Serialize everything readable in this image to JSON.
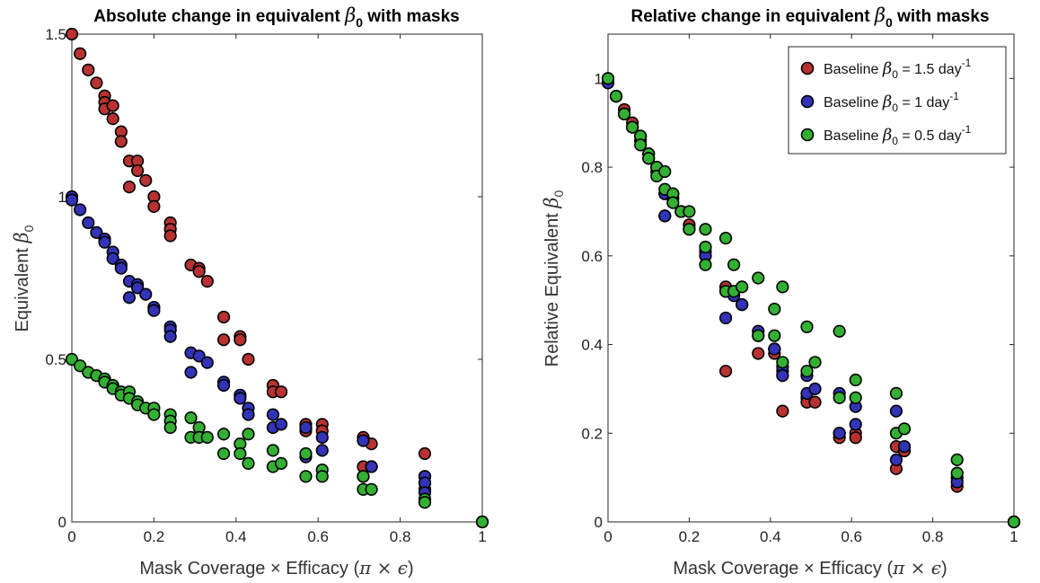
{
  "colors": {
    "red": "#b83232",
    "blue": "#3333b8",
    "green": "#33b033",
    "edge": "#000000"
  },
  "legend": {
    "placement": "top-right",
    "entries": [
      {
        "prefix": "Baseline ",
        "beta": "β",
        "sub": "0",
        "mid": " = 1.5 day",
        "sup": "-1",
        "color": "red"
      },
      {
        "prefix": "Baseline ",
        "beta": "β",
        "sub": "0",
        "mid": " = 1 day",
        "sup": "-1",
        "color": "blue"
      },
      {
        "prefix": "Baseline ",
        "beta": "β",
        "sub": "0",
        "mid": " = 0.5 day",
        "sup": "-1",
        "color": "green"
      }
    ]
  },
  "chart_data": [
    {
      "type": "scatter",
      "title": {
        "text": "Absolute change in equivalent ",
        "beta": "β",
        "sub": "0",
        "tail": " with masks"
      },
      "xlabel": {
        "text": "Mask Coverage × Efficacy (",
        "greek": "π × ϵ",
        "tail": ")"
      },
      "ylabel": {
        "text": "Equivalent ",
        "beta": "β",
        "sub": "0"
      },
      "xlim": [
        0,
        1
      ],
      "ylim": [
        0,
        1.5
      ],
      "xticks": [
        0,
        0.2,
        0.4,
        0.6,
        0.8,
        1
      ],
      "xticklabels": [
        "0",
        "0.2",
        "0.4",
        "0.6",
        "0.8",
        "1"
      ],
      "yticks": [
        0,
        0.5,
        1,
        1.5
      ],
      "yticklabels": [
        "0",
        "0.5",
        "1",
        "1.5"
      ],
      "grid": false,
      "series": [
        {
          "color": "red",
          "points": [
            [
              0,
              1.5
            ],
            [
              0.02,
              1.44
            ],
            [
              0.04,
              1.39
            ],
            [
              0.06,
              1.35
            ],
            [
              0.08,
              1.31
            ],
            [
              0.08,
              1.29
            ],
            [
              0.08,
              1.27
            ],
            [
              0.1,
              1.24
            ],
            [
              0.1,
              1.28
            ],
            [
              0.12,
              1.2
            ],
            [
              0.12,
              1.17
            ],
            [
              0.14,
              1.11
            ],
            [
              0.14,
              1.03
            ],
            [
              0.16,
              1.11
            ],
            [
              0.16,
              1.08
            ],
            [
              0.18,
              1.05
            ],
            [
              0.2,
              1.0
            ],
            [
              0.2,
              0.97
            ],
            [
              0.24,
              0.92
            ],
            [
              0.24,
              0.9
            ],
            [
              0.24,
              0.88
            ],
            [
              0.29,
              0.79
            ],
            [
              0.31,
              0.78
            ],
            [
              0.31,
              0.77
            ],
            [
              0.33,
              0.74
            ],
            [
              0.37,
              0.63
            ],
            [
              0.37,
              0.56
            ],
            [
              0.41,
              0.57
            ],
            [
              0.41,
              0.56
            ],
            [
              0.43,
              0.5
            ],
            [
              0.49,
              0.42
            ],
            [
              0.49,
              0.4
            ],
            [
              0.51,
              0.4
            ],
            [
              0.57,
              0.3
            ],
            [
              0.57,
              0.28
            ],
            [
              0.61,
              0.3
            ],
            [
              0.61,
              0.28
            ],
            [
              0.71,
              0.26
            ],
            [
              0.71,
              0.17
            ],
            [
              0.73,
              0.24
            ],
            [
              0.73,
              0.17
            ],
            [
              0.86,
              0.21
            ],
            [
              0.86,
              0.14
            ],
            [
              0.86,
              0.12
            ],
            [
              0.86,
              0.1
            ],
            [
              1,
              0
            ]
          ]
        },
        {
          "color": "blue",
          "points": [
            [
              0,
              1.0
            ],
            [
              0,
              0.99
            ],
            [
              0.02,
              0.96
            ],
            [
              0.04,
              0.92
            ],
            [
              0.06,
              0.89
            ],
            [
              0.08,
              0.87
            ],
            [
              0.08,
              0.86
            ],
            [
              0.1,
              0.83
            ],
            [
              0.1,
              0.81
            ],
            [
              0.12,
              0.79
            ],
            [
              0.12,
              0.78
            ],
            [
              0.14,
              0.74
            ],
            [
              0.14,
              0.69
            ],
            [
              0.16,
              0.73
            ],
            [
              0.16,
              0.72
            ],
            [
              0.18,
              0.7
            ],
            [
              0.2,
              0.66
            ],
            [
              0.2,
              0.65
            ],
            [
              0.24,
              0.6
            ],
            [
              0.24,
              0.59
            ],
            [
              0.24,
              0.57
            ],
            [
              0.29,
              0.52
            ],
            [
              0.29,
              0.46
            ],
            [
              0.31,
              0.51
            ],
            [
              0.33,
              0.49
            ],
            [
              0.37,
              0.43
            ],
            [
              0.37,
              0.42
            ],
            [
              0.41,
              0.39
            ],
            [
              0.41,
              0.38
            ],
            [
              0.43,
              0.35
            ],
            [
              0.43,
              0.33
            ],
            [
              0.49,
              0.33
            ],
            [
              0.49,
              0.29
            ],
            [
              0.51,
              0.3
            ],
            [
              0.57,
              0.29
            ],
            [
              0.57,
              0.2
            ],
            [
              0.61,
              0.26
            ],
            [
              0.61,
              0.22
            ],
            [
              0.71,
              0.25
            ],
            [
              0.71,
              0.14
            ],
            [
              0.73,
              0.17
            ],
            [
              0.86,
              0.14
            ],
            [
              0.86,
              0.12
            ],
            [
              0.86,
              0.09
            ],
            [
              1,
              0
            ]
          ]
        },
        {
          "color": "green",
          "points": [
            [
              0,
              0.5
            ],
            [
              0.02,
              0.48
            ],
            [
              0.04,
              0.46
            ],
            [
              0.06,
              0.45
            ],
            [
              0.08,
              0.44
            ],
            [
              0.08,
              0.43
            ],
            [
              0.1,
              0.42
            ],
            [
              0.1,
              0.41
            ],
            [
              0.12,
              0.4
            ],
            [
              0.12,
              0.39
            ],
            [
              0.14,
              0.4
            ],
            [
              0.14,
              0.38
            ],
            [
              0.16,
              0.37
            ],
            [
              0.16,
              0.36
            ],
            [
              0.18,
              0.35
            ],
            [
              0.2,
              0.35
            ],
            [
              0.2,
              0.33
            ],
            [
              0.24,
              0.33
            ],
            [
              0.24,
              0.31
            ],
            [
              0.24,
              0.29
            ],
            [
              0.29,
              0.32
            ],
            [
              0.29,
              0.26
            ],
            [
              0.31,
              0.29
            ],
            [
              0.31,
              0.26
            ],
            [
              0.33,
              0.26
            ],
            [
              0.37,
              0.27
            ],
            [
              0.37,
              0.21
            ],
            [
              0.41,
              0.24
            ],
            [
              0.41,
              0.21
            ],
            [
              0.43,
              0.27
            ],
            [
              0.43,
              0.18
            ],
            [
              0.49,
              0.22
            ],
            [
              0.49,
              0.17
            ],
            [
              0.51,
              0.18
            ],
            [
              0.57,
              0.21
            ],
            [
              0.57,
              0.14
            ],
            [
              0.61,
              0.16
            ],
            [
              0.61,
              0.14
            ],
            [
              0.71,
              0.14
            ],
            [
              0.71,
              0.1
            ],
            [
              0.73,
              0.1
            ],
            [
              0.86,
              0.07
            ],
            [
              0.86,
              0.06
            ],
            [
              1,
              0
            ]
          ]
        }
      ]
    },
    {
      "type": "scatter",
      "title": {
        "text": "Relative change in equivalent ",
        "beta": "β",
        "sub": "0",
        "tail": " with masks"
      },
      "xlabel": {
        "text": "Mask Coverage × Efficacy (",
        "greek": "π × ϵ",
        "tail": ")"
      },
      "ylabel": {
        "text": "Relative Equivalent ",
        "beta": "β",
        "sub": "0"
      },
      "xlim": [
        0,
        1
      ],
      "ylim": [
        0,
        1.1
      ],
      "xticks": [
        0,
        0.2,
        0.4,
        0.6,
        0.8,
        1
      ],
      "xticklabels": [
        "0",
        "0.2",
        "0.4",
        "0.6",
        "0.8",
        "1"
      ],
      "yticks": [
        0,
        0.2,
        0.4,
        0.6,
        0.8,
        1
      ],
      "yticklabels": [
        "0",
        "0.2",
        "0.4",
        "0.6",
        "0.8",
        "1"
      ],
      "grid": false,
      "series": [
        {
          "color": "red",
          "points": [
            [
              0,
              1.0
            ],
            [
              0.02,
              0.96
            ],
            [
              0.04,
              0.93
            ],
            [
              0.06,
              0.9
            ],
            [
              0.08,
              0.87
            ],
            [
              0.1,
              0.83
            ],
            [
              0.12,
              0.8
            ],
            [
              0.14,
              0.74
            ],
            [
              0.14,
              0.69
            ],
            [
              0.16,
              0.74
            ],
            [
              0.18,
              0.7
            ],
            [
              0.2,
              0.67
            ],
            [
              0.24,
              0.61
            ],
            [
              0.29,
              0.53
            ],
            [
              0.29,
              0.34
            ],
            [
              0.31,
              0.52
            ],
            [
              0.33,
              0.49
            ],
            [
              0.37,
              0.42
            ],
            [
              0.37,
              0.38
            ],
            [
              0.41,
              0.38
            ],
            [
              0.43,
              0.34
            ],
            [
              0.43,
              0.25
            ],
            [
              0.49,
              0.28
            ],
            [
              0.49,
              0.27
            ],
            [
              0.51,
              0.27
            ],
            [
              0.57,
              0.2
            ],
            [
              0.57,
              0.19
            ],
            [
              0.61,
              0.2
            ],
            [
              0.61,
              0.19
            ],
            [
              0.71,
              0.17
            ],
            [
              0.71,
              0.12
            ],
            [
              0.73,
              0.16
            ],
            [
              0.86,
              0.1
            ],
            [
              0.86,
              0.08
            ],
            [
              1,
              0
            ]
          ]
        },
        {
          "color": "blue",
          "points": [
            [
              0,
              0.99
            ],
            [
              0.02,
              0.96
            ],
            [
              0.04,
              0.92
            ],
            [
              0.06,
              0.89
            ],
            [
              0.08,
              0.86
            ],
            [
              0.1,
              0.82
            ],
            [
              0.12,
              0.79
            ],
            [
              0.14,
              0.74
            ],
            [
              0.14,
              0.69
            ],
            [
              0.16,
              0.73
            ],
            [
              0.18,
              0.7
            ],
            [
              0.2,
              0.66
            ],
            [
              0.24,
              0.6
            ],
            [
              0.29,
              0.52
            ],
            [
              0.29,
              0.46
            ],
            [
              0.31,
              0.51
            ],
            [
              0.33,
              0.49
            ],
            [
              0.37,
              0.43
            ],
            [
              0.41,
              0.39
            ],
            [
              0.41,
              0.39
            ],
            [
              0.43,
              0.35
            ],
            [
              0.43,
              0.33
            ],
            [
              0.49,
              0.33
            ],
            [
              0.49,
              0.29
            ],
            [
              0.51,
              0.3
            ],
            [
              0.57,
              0.29
            ],
            [
              0.57,
              0.2
            ],
            [
              0.61,
              0.26
            ],
            [
              0.61,
              0.22
            ],
            [
              0.71,
              0.25
            ],
            [
              0.71,
              0.14
            ],
            [
              0.73,
              0.17
            ],
            [
              0.86,
              0.09
            ],
            [
              1,
              0
            ]
          ]
        },
        {
          "color": "green",
          "points": [
            [
              0,
              1.0
            ],
            [
              0.02,
              0.96
            ],
            [
              0.04,
              0.92
            ],
            [
              0.06,
              0.89
            ],
            [
              0.08,
              0.87
            ],
            [
              0.08,
              0.85
            ],
            [
              0.1,
              0.83
            ],
            [
              0.1,
              0.82
            ],
            [
              0.12,
              0.8
            ],
            [
              0.12,
              0.78
            ],
            [
              0.14,
              0.79
            ],
            [
              0.14,
              0.75
            ],
            [
              0.16,
              0.74
            ],
            [
              0.16,
              0.72
            ],
            [
              0.18,
              0.7
            ],
            [
              0.2,
              0.7
            ],
            [
              0.2,
              0.66
            ],
            [
              0.24,
              0.66
            ],
            [
              0.24,
              0.62
            ],
            [
              0.24,
              0.58
            ],
            [
              0.29,
              0.64
            ],
            [
              0.29,
              0.52
            ],
            [
              0.31,
              0.58
            ],
            [
              0.31,
              0.52
            ],
            [
              0.33,
              0.53
            ],
            [
              0.37,
              0.55
            ],
            [
              0.37,
              0.42
            ],
            [
              0.41,
              0.48
            ],
            [
              0.41,
              0.42
            ],
            [
              0.43,
              0.53
            ],
            [
              0.43,
              0.36
            ],
            [
              0.49,
              0.44
            ],
            [
              0.49,
              0.34
            ],
            [
              0.51,
              0.36
            ],
            [
              0.57,
              0.43
            ],
            [
              0.57,
              0.28
            ],
            [
              0.61,
              0.32
            ],
            [
              0.61,
              0.28
            ],
            [
              0.71,
              0.29
            ],
            [
              0.71,
              0.2
            ],
            [
              0.73,
              0.21
            ],
            [
              0.86,
              0.14
            ],
            [
              0.86,
              0.11
            ],
            [
              1,
              0
            ]
          ]
        }
      ]
    }
  ]
}
